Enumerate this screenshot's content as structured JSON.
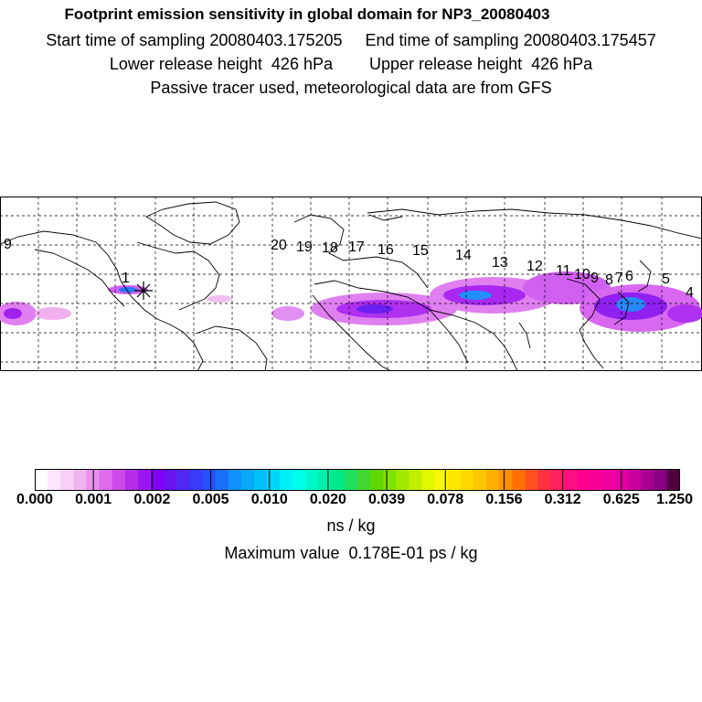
{
  "titles": {
    "line1": "Footprint emission sensitivity in global domain for NP3_20080403",
    "line2": "Start time of sampling 20080403.175205     End time of sampling 20080403.175457",
    "line3": "Lower release height  426 hPa        Upper release height  426 hPa",
    "line4": "Passive tracer used, meteorological data are from GFS"
  },
  "map": {
    "release_marker": "asterisk",
    "trajectory_labels": [
      "9",
      "1",
      "20",
      "19",
      "18",
      "17",
      "16",
      "15",
      "14",
      "13",
      "12",
      "11",
      "10",
      "9",
      "8",
      "7",
      "6",
      "5",
      "4"
    ]
  },
  "colorbar": {
    "tick_labels": [
      "0.000",
      "0.001",
      "0.002",
      "0.005",
      "0.010",
      "0.020",
      "0.039",
      "0.078",
      "0.156",
      "0.312",
      "0.625",
      "1.250"
    ],
    "unit": "ns / kg",
    "colors": [
      "#ffffff",
      "#fbe6fb",
      "#f7d0f7",
      "#f0b4f0",
      "#e890ec",
      "#dc6cec",
      "#cc4ae8",
      "#b42ee8",
      "#9a18f0",
      "#8000f4",
      "#6a14f0",
      "#5028f4",
      "#3a3af8",
      "#2850f8",
      "#1870f8",
      "#1090f8",
      "#08a8f8",
      "#00c0f8",
      "#00d8f8",
      "#00f0f8",
      "#00ffe8",
      "#00f8c8",
      "#00f0a8",
      "#00e888",
      "#20e060",
      "#40d830",
      "#60d800",
      "#80e000",
      "#a0e800",
      "#c0f000",
      "#e0f800",
      "#f8f800",
      "#ffe800",
      "#ffd800",
      "#ffc800",
      "#ffb000",
      "#ff9000",
      "#ff7000",
      "#ff5020",
      "#ff3040",
      "#ff2060",
      "#ff1080",
      "#ff0090",
      "#f80098",
      "#f000a0",
      "#e000a0",
      "#c8009c",
      "#a80090",
      "#880080",
      "#500040"
    ]
  },
  "maximum": "Maximum value  0.178E-01 ps / kg"
}
